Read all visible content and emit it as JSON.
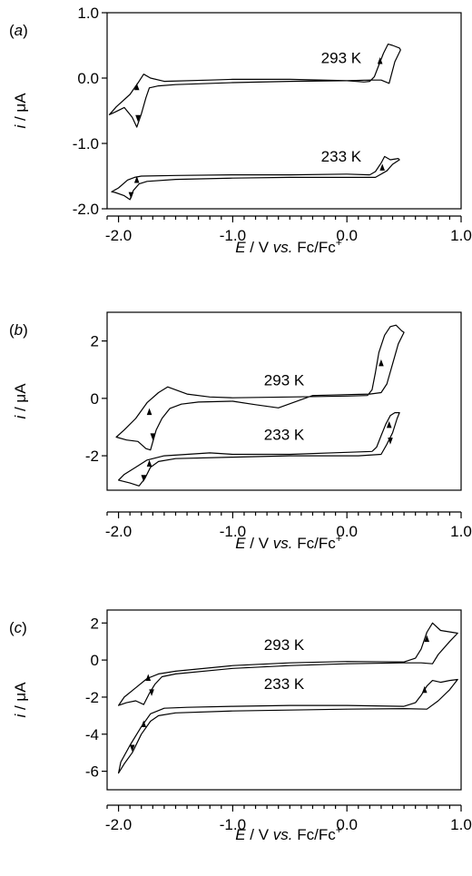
{
  "chart_data": [
    {
      "type": "line",
      "panel_label": "a",
      "xlabel_italic": "E",
      "xlabel_rest": " / V ",
      "xlabel_vs": "vs.",
      "xlabel_tail": " Fc/Fc",
      "xlabel_sup": "+",
      "ylabel_italic": "i",
      "ylabel_rest": " / μA",
      "xlim": [
        -2.1,
        1.0
      ],
      "ylim": [
        -2.0,
        1.0
      ],
      "xticks": [
        -2.0,
        -1.0,
        0.0,
        1.0
      ],
      "xtick_labels": [
        "-2.0",
        "-1.0",
        "0.0",
        "1.0"
      ],
      "yticks": [
        -2.0,
        -1.0,
        0.0,
        1.0
      ],
      "ytick_labels": [
        "-2.0",
        "-1.0",
        "0.0",
        "1.0"
      ],
      "series": [
        {
          "name": "293 K",
          "label_pos": [
            -0.05,
            0.23
          ],
          "points": [
            [
              0.15,
              -0.06
            ],
            [
              0.2,
              -0.05
            ],
            [
              0.24,
              0.02
            ],
            [
              0.28,
              0.2
            ],
            [
              0.32,
              0.38
            ],
            [
              0.36,
              0.52
            ],
            [
              0.4,
              0.5
            ],
            [
              0.46,
              0.46
            ],
            [
              0.47,
              0.43
            ],
            [
              0.42,
              0.25
            ],
            [
              0.37,
              -0.08
            ],
            [
              0.3,
              -0.03
            ],
            [
              0.2,
              -0.03
            ],
            [
              0.0,
              -0.04
            ],
            [
              -0.5,
              -0.05
            ],
            [
              -1.0,
              -0.07
            ],
            [
              -1.5,
              -0.1
            ],
            [
              -1.65,
              -0.12
            ],
            [
              -1.73,
              -0.15
            ],
            [
              -1.76,
              -0.3
            ],
            [
              -1.8,
              -0.55
            ],
            [
              -1.84,
              -0.75
            ],
            [
              -1.88,
              -0.6
            ],
            [
              -1.95,
              -0.45
            ],
            [
              -2.03,
              -0.52
            ],
            [
              -2.08,
              -0.56
            ],
            [
              -2.02,
              -0.44
            ],
            [
              -1.9,
              -0.25
            ],
            [
              -1.82,
              -0.05
            ],
            [
              -1.78,
              0.06
            ],
            [
              -1.72,
              0.0
            ],
            [
              -1.6,
              -0.05
            ],
            [
              -1.2,
              -0.03
            ],
            [
              -1.0,
              -0.02
            ],
            [
              -0.5,
              -0.02
            ],
            [
              0.0,
              -0.04
            ],
            [
              0.15,
              -0.06
            ]
          ],
          "arrows": [
            [
              0.29,
              0.25,
              "up"
            ],
            [
              -1.83,
              -0.6,
              "down"
            ],
            [
              -1.84,
              -0.15,
              "up"
            ]
          ]
        },
        {
          "name": "233 K",
          "label_pos": [
            -0.05,
            -1.28
          ],
          "points": [
            [
              0.2,
              -1.48
            ],
            [
              0.25,
              -1.43
            ],
            [
              0.3,
              -1.3
            ],
            [
              0.33,
              -1.2
            ],
            [
              0.38,
              -1.25
            ],
            [
              0.45,
              -1.23
            ],
            [
              0.46,
              -1.25
            ],
            [
              0.4,
              -1.32
            ],
            [
              0.35,
              -1.42
            ],
            [
              0.25,
              -1.52
            ],
            [
              0.0,
              -1.52
            ],
            [
              -0.5,
              -1.52
            ],
            [
              -1.0,
              -1.53
            ],
            [
              -1.5,
              -1.55
            ],
            [
              -1.75,
              -1.58
            ],
            [
              -1.82,
              -1.62
            ],
            [
              -1.87,
              -1.72
            ],
            [
              -1.9,
              -1.86
            ],
            [
              -1.95,
              -1.8
            ],
            [
              -2.03,
              -1.75
            ],
            [
              -2.06,
              -1.74
            ],
            [
              -2.0,
              -1.68
            ],
            [
              -1.92,
              -1.56
            ],
            [
              -1.86,
              -1.52
            ],
            [
              -1.8,
              -1.5
            ],
            [
              -1.5,
              -1.49
            ],
            [
              -1.0,
              -1.48
            ],
            [
              -0.5,
              -1.48
            ],
            [
              0.0,
              -1.47
            ],
            [
              0.2,
              -1.48
            ]
          ],
          "arrows": [
            [
              0.31,
              -1.38,
              "up"
            ],
            [
              -1.84,
              -1.57,
              "up"
            ],
            [
              -1.89,
              -1.78,
              "down"
            ]
          ]
        }
      ]
    },
    {
      "type": "line",
      "panel_label": "b",
      "xlabel_italic": "E",
      "xlabel_rest": " / V ",
      "xlabel_vs": "vs.",
      "xlabel_tail": " Fc/Fc",
      "xlabel_sup": "+",
      "ylabel_italic": "i",
      "ylabel_rest": " / μA",
      "xlim": [
        -2.1,
        1.0
      ],
      "ylim": [
        -3.2,
        3.0
      ],
      "xticks": [
        -2.0,
        -1.0,
        0.0,
        1.0
      ],
      "xtick_labels": [
        "-2.0",
        "-1.0",
        "0.0",
        "1.0"
      ],
      "yticks": [
        -2,
        0,
        2
      ],
      "ytick_labels": [
        "-2",
        "0",
        "2"
      ],
      "series": [
        {
          "name": "293 K",
          "label_pos": [
            -0.55,
            0.45
          ],
          "points": [
            [
              0.18,
              0.1
            ],
            [
              0.22,
              0.3
            ],
            [
              0.25,
              0.9
            ],
            [
              0.28,
              1.6
            ],
            [
              0.33,
              2.2
            ],
            [
              0.38,
              2.5
            ],
            [
              0.43,
              2.55
            ],
            [
              0.48,
              2.35
            ],
            [
              0.5,
              2.3
            ],
            [
              0.45,
              1.9
            ],
            [
              0.4,
              1.2
            ],
            [
              0.35,
              0.5
            ],
            [
              0.3,
              0.2
            ],
            [
              0.2,
              0.15
            ],
            [
              0.0,
              0.13
            ],
            [
              -0.3,
              0.1
            ],
            [
              -0.6,
              -0.33
            ],
            [
              -0.8,
              -0.22
            ],
            [
              -1.0,
              -0.1
            ],
            [
              -1.3,
              -0.13
            ],
            [
              -1.45,
              -0.2
            ],
            [
              -1.55,
              -0.35
            ],
            [
              -1.62,
              -0.7
            ],
            [
              -1.67,
              -1.1
            ],
            [
              -1.72,
              -1.8
            ],
            [
              -1.76,
              -1.75
            ],
            [
              -1.83,
              -1.5
            ],
            [
              -1.93,
              -1.45
            ],
            [
              -2.02,
              -1.35
            ],
            [
              -1.95,
              -1.1
            ],
            [
              -1.85,
              -0.7
            ],
            [
              -1.75,
              -0.15
            ],
            [
              -1.65,
              0.2
            ],
            [
              -1.57,
              0.4
            ],
            [
              -1.5,
              0.3
            ],
            [
              -1.4,
              0.15
            ],
            [
              -1.2,
              0.05
            ],
            [
              -1.0,
              0.02
            ],
            [
              -0.5,
              0.05
            ],
            [
              0.0,
              0.08
            ],
            [
              0.18,
              0.1
            ]
          ],
          "arrows": [
            [
              0.3,
              1.2,
              "up"
            ],
            [
              -1.7,
              -1.3,
              "down"
            ],
            [
              -1.73,
              -0.5,
              "up"
            ]
          ]
        },
        {
          "name": "233 K",
          "label_pos": [
            -0.55,
            -1.45
          ],
          "points": [
            [
              0.22,
              -1.85
            ],
            [
              0.26,
              -1.7
            ],
            [
              0.3,
              -1.3
            ],
            [
              0.34,
              -0.9
            ],
            [
              0.38,
              -0.6
            ],
            [
              0.42,
              -0.5
            ],
            [
              0.46,
              -0.5
            ],
            [
              0.44,
              -0.7
            ],
            [
              0.4,
              -1.2
            ],
            [
              0.35,
              -1.6
            ],
            [
              0.3,
              -1.95
            ],
            [
              0.1,
              -2.0
            ],
            [
              -0.5,
              -2.0
            ],
            [
              -1.0,
              -2.05
            ],
            [
              -1.5,
              -2.1
            ],
            [
              -1.65,
              -2.2
            ],
            [
              -1.72,
              -2.4
            ],
            [
              -1.77,
              -2.8
            ],
            [
              -1.82,
              -3.05
            ],
            [
              -1.9,
              -2.95
            ],
            [
              -2.0,
              -2.85
            ],
            [
              -1.95,
              -2.65
            ],
            [
              -1.85,
              -2.4
            ],
            [
              -1.75,
              -2.15
            ],
            [
              -1.6,
              -2.0
            ],
            [
              -1.4,
              -1.95
            ],
            [
              -1.2,
              -1.9
            ],
            [
              -1.0,
              -1.95
            ],
            [
              -0.5,
              -1.95
            ],
            [
              0.0,
              -1.88
            ],
            [
              0.22,
              -1.85
            ]
          ],
          "arrows": [
            [
              0.37,
              -0.95,
              "up"
            ],
            [
              0.38,
              -1.45,
              "down"
            ],
            [
              -1.73,
              -2.3,
              "up"
            ],
            [
              -1.78,
              -2.75,
              "down"
            ]
          ]
        }
      ]
    },
    {
      "type": "line",
      "panel_label": "c",
      "xlabel_italic": "E",
      "xlabel_rest": " / V ",
      "xlabel_vs": "vs.",
      "xlabel_tail": " Fc/Fc",
      "xlabel_sup": "+",
      "ylabel_italic": "i",
      "ylabel_rest": " / μA",
      "xlim": [
        -2.1,
        1.0
      ],
      "ylim": [
        -7.0,
        2.7
      ],
      "xticks": [
        -2.0,
        -1.0,
        0.0,
        1.0
      ],
      "xtick_labels": [
        "-2.0",
        "-1.0",
        "0.0",
        "1.0"
      ],
      "yticks": [
        -6,
        -4,
        -2,
        0,
        2
      ],
      "ytick_labels": [
        "-6",
        "-4",
        "-2",
        "0",
        "2"
      ],
      "series": [
        {
          "name": "293 K",
          "label_pos": [
            -0.55,
            0.55
          ],
          "points": [
            [
              0.5,
              -0.1
            ],
            [
              0.6,
              0.1
            ],
            [
              0.65,
              0.6
            ],
            [
              0.7,
              1.5
            ],
            [
              0.75,
              2.0
            ],
            [
              0.82,
              1.6
            ],
            [
              0.92,
              1.5
            ],
            [
              0.97,
              1.45
            ],
            [
              0.9,
              1.0
            ],
            [
              0.8,
              0.3
            ],
            [
              0.75,
              -0.2
            ],
            [
              0.65,
              -0.15
            ],
            [
              0.5,
              -0.15
            ],
            [
              0.0,
              -0.2
            ],
            [
              -0.5,
              -0.3
            ],
            [
              -1.0,
              -0.45
            ],
            [
              -1.5,
              -0.75
            ],
            [
              -1.62,
              -0.9
            ],
            [
              -1.68,
              -1.3
            ],
            [
              -1.73,
              -1.8
            ],
            [
              -1.78,
              -2.4
            ],
            [
              -1.85,
              -2.2
            ],
            [
              -1.93,
              -2.3
            ],
            [
              -2.0,
              -2.45
            ],
            [
              -1.95,
              -2.0
            ],
            [
              -1.85,
              -1.5
            ],
            [
              -1.75,
              -1.0
            ],
            [
              -1.65,
              -0.75
            ],
            [
              -1.5,
              -0.6
            ],
            [
              -1.0,
              -0.3
            ],
            [
              -0.5,
              -0.15
            ],
            [
              0.0,
              -0.08
            ],
            [
              0.5,
              -0.1
            ]
          ],
          "arrows": [
            [
              0.7,
              1.1,
              "up"
            ],
            [
              -1.71,
              -1.7,
              "down"
            ],
            [
              -1.74,
              -1.0,
              "up"
            ]
          ]
        },
        {
          "name": "233 K",
          "label_pos": [
            -0.55,
            -1.55
          ],
          "points": [
            [
              0.5,
              -2.5
            ],
            [
              0.6,
              -2.3
            ],
            [
              0.65,
              -1.9
            ],
            [
              0.7,
              -1.4
            ],
            [
              0.75,
              -1.1
            ],
            [
              0.82,
              -1.2
            ],
            [
              0.9,
              -1.1
            ],
            [
              0.97,
              -1.05
            ],
            [
              0.9,
              -1.6
            ],
            [
              0.8,
              -2.2
            ],
            [
              0.7,
              -2.65
            ],
            [
              0.5,
              -2.62
            ],
            [
              0.0,
              -2.65
            ],
            [
              -0.5,
              -2.7
            ],
            [
              -1.0,
              -2.75
            ],
            [
              -1.5,
              -2.85
            ],
            [
              -1.65,
              -3.0
            ],
            [
              -1.72,
              -3.3
            ],
            [
              -1.8,
              -4.0
            ],
            [
              -1.88,
              -5.0
            ],
            [
              -1.95,
              -5.6
            ],
            [
              -2.0,
              -6.1
            ],
            [
              -1.98,
              -5.5
            ],
            [
              -1.9,
              -4.6
            ],
            [
              -1.8,
              -3.6
            ],
            [
              -1.72,
              -2.9
            ],
            [
              -1.6,
              -2.6
            ],
            [
              -1.4,
              -2.55
            ],
            [
              -1.0,
              -2.5
            ],
            [
              -0.5,
              -2.45
            ],
            [
              0.0,
              -2.45
            ],
            [
              0.5,
              -2.5
            ]
          ],
          "arrows": [
            [
              0.68,
              -1.65,
              "up"
            ],
            [
              -1.78,
              -3.5,
              "up"
            ],
            [
              -1.88,
              -4.7,
              "down"
            ]
          ]
        }
      ]
    }
  ]
}
